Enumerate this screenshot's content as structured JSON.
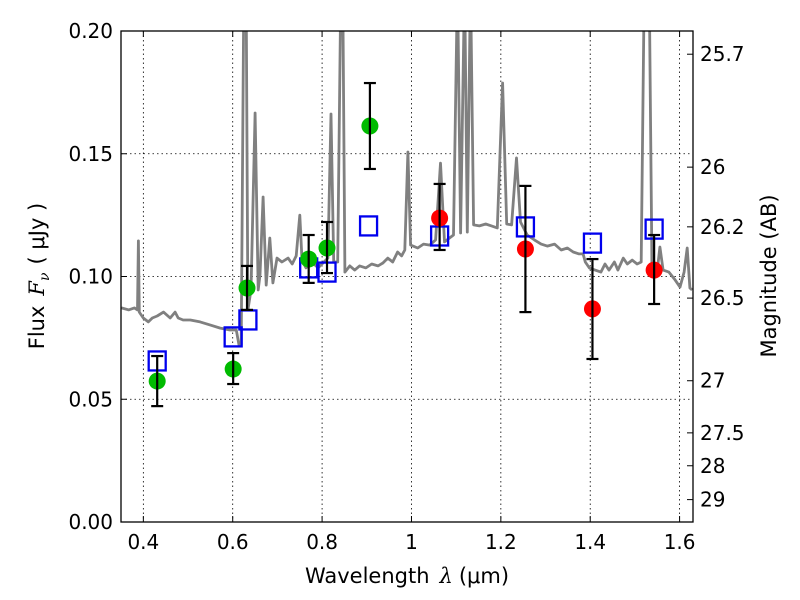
{
  "chart_data": {
    "type": "scatter",
    "title": "",
    "xlabel": "Wavelength",
    "xlabel_symbol": "λ",
    "xlabel_unit": "(μm)",
    "ylabel": "Flux",
    "ylabel_symbol": "F",
    "ylabel_subscript": "ν",
    "ylabel_unit": "( μJy )",
    "y2label": "Magnitude (AB)",
    "xlim": [
      0.35,
      1.63
    ],
    "ylim": [
      0.0,
      0.2
    ],
    "grid": true,
    "x_ticks": [
      0.4,
      0.6,
      0.8,
      1.0,
      1.2,
      1.4,
      1.6
    ],
    "x_tick_labels": [
      "0.4",
      "0.6",
      "0.8",
      "1",
      "1.2",
      "1.4",
      "1.6"
    ],
    "y_ticks": [
      0.0,
      0.05,
      0.1,
      0.15,
      0.2
    ],
    "y_tick_labels": [
      "0.00",
      "0.05",
      "0.10",
      "0.15",
      "0.20"
    ],
    "y2_ticks": [
      25.7,
      26,
      26.2,
      26.5,
      27,
      27.5,
      28,
      29
    ],
    "y2_tick_labels": [
      "25.7",
      "26",
      "26.2",
      "26.5",
      "27",
      "27.5",
      "28",
      "29"
    ],
    "y2_zeropoint_ab": 23.9,
    "colors": {
      "spectrum": "#808080",
      "green_points": "#00bb00",
      "red_points": "#ff0000",
      "model_squares": "#0000ee",
      "error_bars": "#000000"
    },
    "series": [
      {
        "name": "model-spectrum",
        "type": "line",
        "x": [
          0.351,
          0.367,
          0.38,
          0.387,
          0.389,
          0.391,
          0.4,
          0.411,
          0.42,
          0.431,
          0.445,
          0.46,
          0.471,
          0.478,
          0.489,
          0.505,
          0.527,
          0.55,
          0.572,
          0.594,
          0.608,
          0.614,
          0.619,
          0.625,
          0.63,
          0.634,
          0.641,
          0.65,
          0.657,
          0.661,
          0.668,
          0.675,
          0.683,
          0.69,
          0.699,
          0.71,
          0.724,
          0.733,
          0.742,
          0.75,
          0.755,
          0.764,
          0.777,
          0.791,
          0.804,
          0.813,
          0.82,
          0.826,
          0.835,
          0.842,
          0.846,
          0.851,
          0.862,
          0.873,
          0.884,
          0.898,
          0.911,
          0.925,
          0.936,
          0.947,
          0.958,
          0.969,
          0.978,
          0.985,
          0.992,
          0.998,
          1.014,
          1.027,
          1.041,
          1.054,
          1.065,
          1.074,
          1.085,
          1.094,
          1.103,
          1.11,
          1.119,
          1.125,
          1.132,
          1.139,
          1.152,
          1.166,
          1.179,
          1.192,
          1.204,
          1.213,
          1.224,
          1.235,
          1.244,
          1.259,
          1.275,
          1.29,
          1.304,
          1.32,
          1.335,
          1.349,
          1.362,
          1.375,
          1.384,
          1.389,
          1.398,
          1.411,
          1.424,
          1.433,
          1.442,
          1.454,
          1.462,
          1.474,
          1.483,
          1.494,
          1.505,
          1.514,
          1.521,
          1.532,
          1.538,
          1.55,
          1.556,
          1.563,
          1.576,
          1.59,
          1.601,
          1.61,
          1.617,
          1.623,
          1.628
        ],
        "y": [
          0.0872,
          0.0864,
          0.0872,
          0.0864,
          0.1145,
          0.0855,
          0.0831,
          0.0815,
          0.0831,
          0.0839,
          0.0855,
          0.0831,
          0.0855,
          0.0831,
          0.0823,
          0.0823,
          0.0815,
          0.0802,
          0.079,
          0.0782,
          0.0782,
          0.0721,
          0.0721,
          0.22,
          0.22,
          0.0864,
          0.0945,
          0.1666,
          0.0945,
          0.1006,
          0.1324,
          0.0965,
          0.1157,
          0.0974,
          0.1075,
          0.1059,
          0.1075,
          0.1051,
          0.1084,
          0.125,
          0.1067,
          0.1035,
          0.1059,
          0.1035,
          0.1059,
          0.1075,
          0.1662,
          0.1059,
          0.1059,
          0.22,
          0.22,
          0.1018,
          0.1043,
          0.1026,
          0.1043,
          0.1035,
          0.1051,
          0.1043,
          0.1055,
          0.1075,
          0.1059,
          0.11,
          0.1084,
          0.1108,
          0.1507,
          0.1128,
          0.1116,
          0.1132,
          0.1128,
          0.1149,
          0.1462,
          0.1141,
          0.1157,
          0.1169,
          0.22,
          0.1177,
          0.22,
          0.1181,
          0.22,
          0.121,
          0.1206,
          0.1214,
          0.1206,
          0.1198,
          0.1788,
          0.1214,
          0.121,
          0.1483,
          0.1222,
          0.1169,
          0.1149,
          0.1132,
          0.1124,
          0.1132,
          0.1108,
          0.1116,
          0.11,
          0.1092,
          0.1092,
          0.1059,
          0.1035,
          0.1026,
          0.1018,
          0.1051,
          0.1026,
          0.1059,
          0.1026,
          0.1075,
          0.1051,
          0.1067,
          0.1051,
          0.1059,
          0.22,
          0.22,
          0.1059,
          0.1026,
          0.112,
          0.1026,
          0.1018,
          0.0986,
          0.0957,
          0.1018,
          0.1116,
          0.0953,
          0.0945
        ]
      },
      {
        "name": "observed-green",
        "type": "scatter-errorbar",
        "x": [
          0.431,
          0.601,
          0.632,
          0.77,
          0.811,
          0.907
        ],
        "y": [
          0.0574,
          0.0623,
          0.0953,
          0.1071,
          0.1116,
          0.1613
        ],
        "yerr_low": [
          0.0472,
          0.0562,
          0.0864,
          0.0974,
          0.1014,
          0.1438
        ],
        "yerr_high": [
          0.0676,
          0.0688,
          0.1043,
          0.1169,
          0.1222,
          0.1788
        ]
      },
      {
        "name": "observed-red",
        "type": "scatter-errorbar",
        "x": [
          1.063,
          1.255,
          1.405,
          1.543
        ],
        "y": [
          0.1238,
          0.1112,
          0.0868,
          0.1026
        ],
        "yerr_low": [
          0.1108,
          0.0855,
          0.0664,
          0.0888
        ],
        "yerr_high": [
          0.1377,
          0.1369,
          0.1071,
          0.1169
        ]
      },
      {
        "name": "model-synthetic-photometry",
        "type": "scatter-square",
        "x": [
          0.431,
          0.601,
          0.634,
          0.77,
          0.811,
          0.904,
          1.063,
          1.255,
          1.405,
          1.543
        ],
        "y": [
          0.0656,
          0.0754,
          0.0823,
          0.1035,
          0.1018,
          0.1206,
          0.1165,
          0.1202,
          0.1136,
          0.1193
        ]
      }
    ]
  }
}
